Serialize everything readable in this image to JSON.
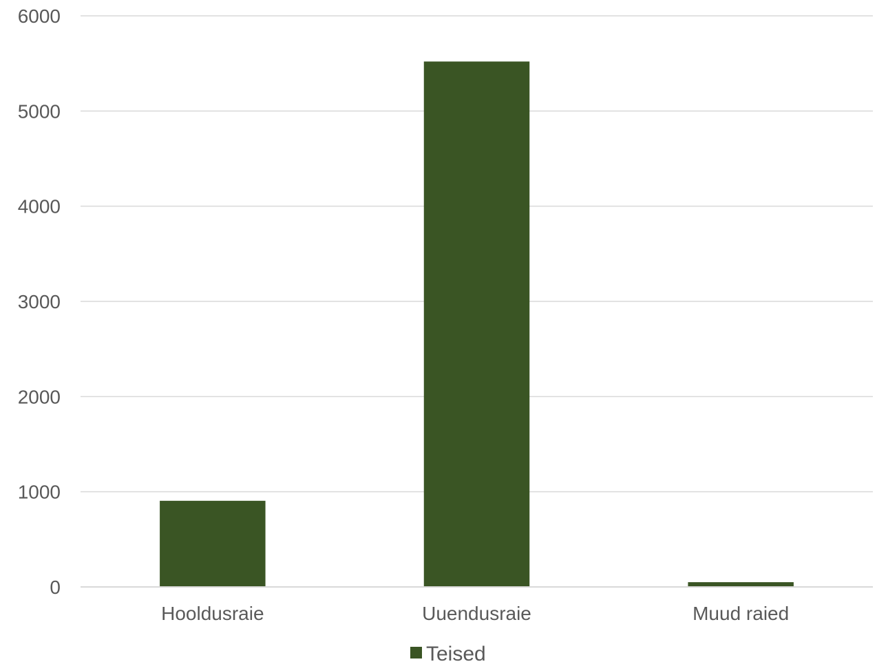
{
  "chart_data": {
    "type": "bar",
    "categories": [
      "Hooldusraie",
      "Uuendusraie",
      "Muud raied"
    ],
    "series": [
      {
        "name": "Teised",
        "values": [
          905,
          5520,
          50
        ],
        "color": "#3a5524"
      }
    ],
    "ylim": [
      0,
      6000
    ],
    "yticks": [
      "0",
      "1000",
      "2000",
      "3000",
      "4000",
      "5000",
      "6000"
    ],
    "grid": true,
    "legend_position": "bottom"
  }
}
